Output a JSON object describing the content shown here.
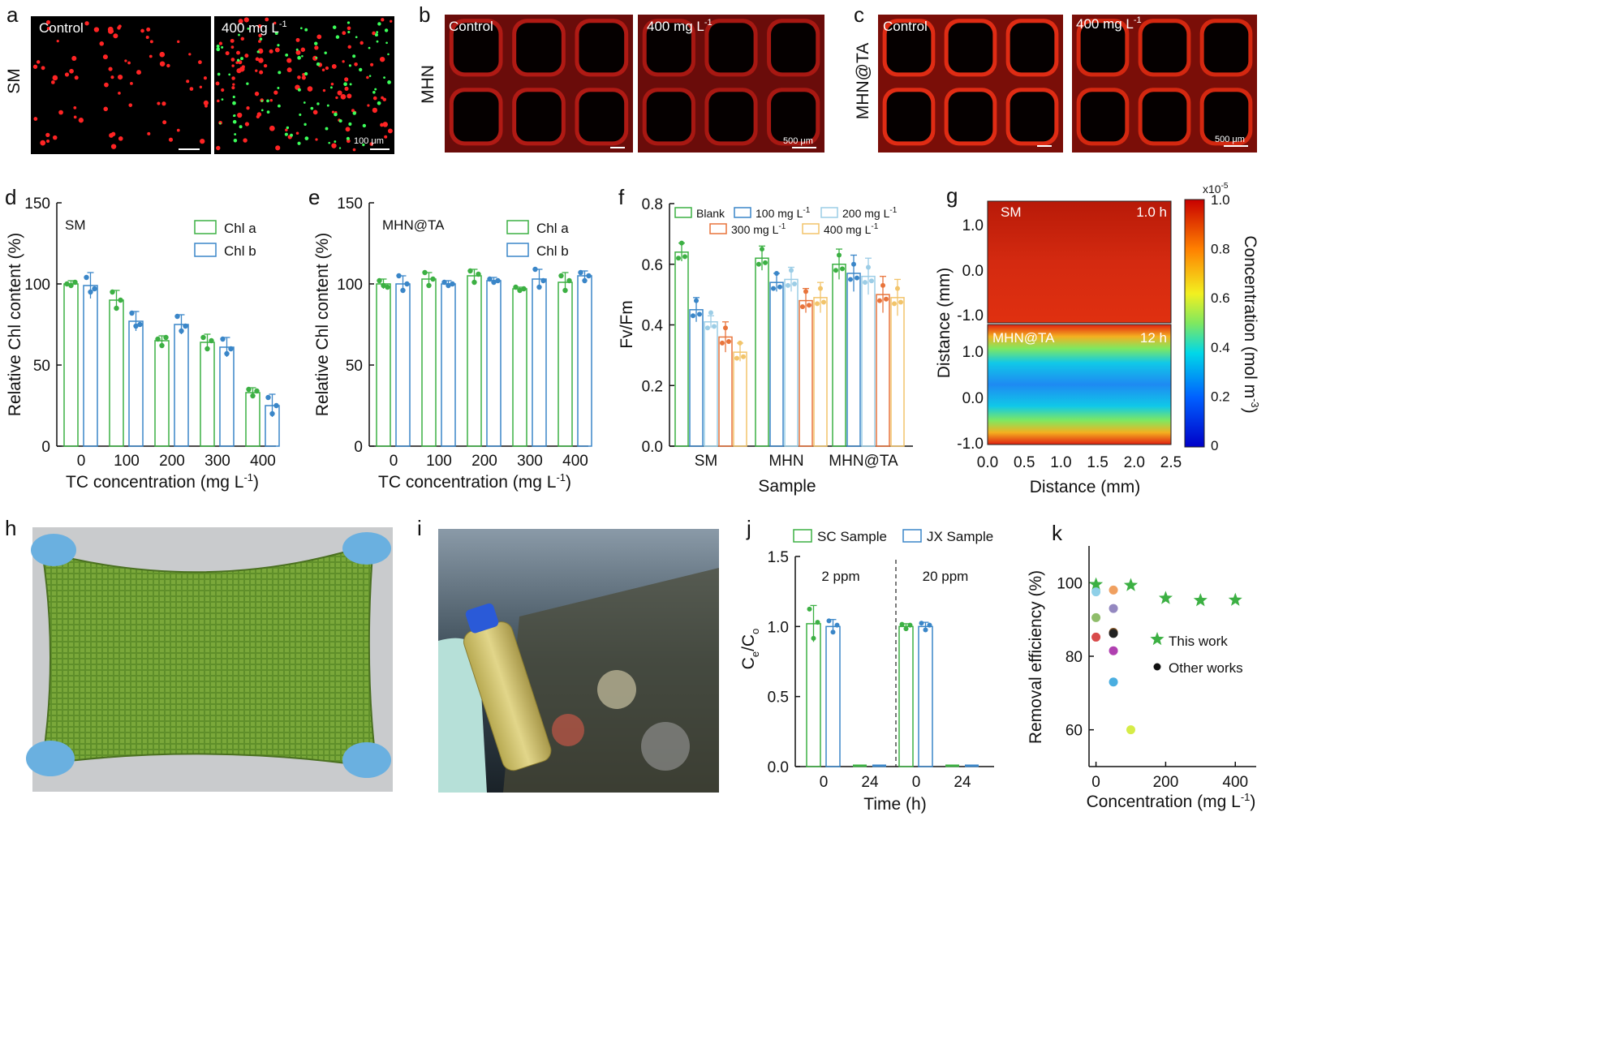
{
  "panel_letters": [
    "a",
    "b",
    "c",
    "d",
    "e",
    "f",
    "g",
    "h",
    "i",
    "j",
    "k"
  ],
  "micrographs": {
    "control": "Control",
    "treated": "400 mg L",
    "treated_sup": "-1",
    "row_labels": [
      "SM",
      "MHN",
      "MHN@TA"
    ],
    "scale_a": "100 μm",
    "scale_bc": "500 μm"
  },
  "colors": {
    "green": "#3cb043",
    "blue": "#3a86c8",
    "lightblue": "#9ccde6",
    "orange": "#e8743b",
    "yellow": "#f2c46a"
  },
  "chart_data": [
    {
      "panel": "d",
      "type": "bar",
      "label": "SM",
      "categories": [
        "0",
        "100",
        "200",
        "300",
        "400"
      ],
      "series": [
        {
          "name": "Chl a",
          "values": [
            100,
            90,
            65,
            64,
            33
          ],
          "err": [
            2,
            6,
            3,
            5,
            3
          ],
          "points": [
            [
              100,
              99,
              101
            ],
            [
              95,
              85,
              90
            ],
            [
              66,
              62,
              67
            ],
            [
              67,
              60,
              65
            ],
            [
              35,
              31,
              34
            ]
          ]
        },
        {
          "name": "Chl b",
          "values": [
            99,
            77,
            75,
            61,
            25
          ],
          "err": [
            8,
            6,
            6,
            6,
            7
          ],
          "points": [
            [
              104,
              95,
              97
            ],
            [
              82,
              74,
              75
            ],
            [
              80,
              71,
              74
            ],
            [
              66,
              57,
              60
            ],
            [
              30,
              20,
              25
            ]
          ]
        }
      ],
      "ylim": [
        0,
        150
      ],
      "yticks": [
        0,
        50,
        100,
        150
      ],
      "xlabel": "TC concentration (mg L",
      "xlabel_sup": "-1",
      "xlabel_end": ")",
      "ylabel": "Relative Chl content (%)"
    },
    {
      "panel": "e",
      "type": "bar",
      "label": "MHN@TA",
      "categories": [
        "0",
        "100",
        "200",
        "300",
        "400"
      ],
      "series": [
        {
          "name": "Chl a",
          "values": [
            100,
            103,
            105,
            97,
            101
          ],
          "err": [
            3,
            4,
            4,
            1,
            6
          ],
          "points": [
            [
              102,
              99,
              98
            ],
            [
              107,
              99,
              103
            ],
            [
              108,
              101,
              106
            ],
            [
              98,
              96,
              97
            ],
            [
              105,
              96,
              102
            ]
          ]
        },
        {
          "name": "Chl b",
          "values": [
            100,
            100,
            102,
            103,
            105
          ],
          "err": [
            5,
            2,
            2,
            6,
            3
          ],
          "points": [
            [
              105,
              96,
              100
            ],
            [
              101,
              99,
              100
            ],
            [
              103,
              101,
              102
            ],
            [
              109,
              98,
              102
            ],
            [
              107,
              102,
              105
            ]
          ]
        }
      ],
      "ylim": [
        0,
        150
      ],
      "yticks": [
        0,
        50,
        100,
        150
      ],
      "xlabel": "TC concentration (mg L",
      "xlabel_sup": "-1",
      "xlabel_end": ")",
      "ylabel": "Relative Chl content (%)"
    },
    {
      "panel": "f",
      "type": "bar",
      "categories": [
        "SM",
        "MHN",
        "MHN@TA"
      ],
      "series": [
        {
          "name": "Blank",
          "values": [
            0.64,
            0.62,
            0.6
          ],
          "err": [
            0.03,
            0.04,
            0.05
          ]
        },
        {
          "name": "100 mg L",
          "sup": "-1",
          "values": [
            0.45,
            0.54,
            0.57
          ],
          "err": [
            0.04,
            0.03,
            0.06
          ]
        },
        {
          "name": "200 mg L",
          "sup": "-1",
          "values": [
            0.41,
            0.55,
            0.56
          ],
          "err": [
            0.02,
            0.04,
            0.06
          ]
        },
        {
          "name": "300 mg L",
          "sup": "-1",
          "values": [
            0.36,
            0.48,
            0.5
          ],
          "err": [
            0.05,
            0.04,
            0.06
          ]
        },
        {
          "name": "400 mg L",
          "sup": "-1",
          "values": [
            0.31,
            0.49,
            0.49
          ],
          "err": [
            0.03,
            0.05,
            0.06
          ]
        }
      ],
      "ylim": [
        0.0,
        0.8
      ],
      "yticks": [
        0.0,
        0.2,
        0.4,
        0.6,
        0.8
      ],
      "xlabel": "Sample",
      "ylabel": "Fv/Fm"
    },
    {
      "panel": "g",
      "type": "heatmap",
      "maps": [
        {
          "label": "SM",
          "time": "1.0 h",
          "profile": "uniform",
          "value": 0.95
        },
        {
          "label": "MHN@TA",
          "time": "12 h",
          "profile": "depleted-center",
          "edge_value": 1.0,
          "center_value": 0.35
        }
      ],
      "xlim": [
        0.0,
        2.5
      ],
      "xticks": [
        "0.0",
        "0.5",
        "1.0",
        "1.5",
        "2.0",
        "2.5"
      ],
      "yticks": [
        "1.0",
        "0.0",
        "-1.0"
      ],
      "xlabel": "Distance (mm)",
      "ylabel": "Distance (mm)",
      "colorbar": {
        "ticks": [
          "0",
          "0.2",
          "0.4",
          "0.6",
          "0.8",
          "1.0"
        ],
        "multiplier": "x10",
        "multiplier_sup": "-5",
        "label": "Concentration (mol m",
        "label_sup": "-3",
        "label_end": ")"
      }
    },
    {
      "panel": "j",
      "type": "bar",
      "groups": [
        "2 ppm",
        "20 ppm"
      ],
      "categories": [
        "0",
        "24",
        "0",
        "24"
      ],
      "series": [
        {
          "name": "SC Sample",
          "values": [
            1.02,
            0.0,
            1.0,
            0.0
          ],
          "err": [
            0.13,
            0.0,
            0.02,
            0.0
          ]
        },
        {
          "name": "JX Sample",
          "values": [
            1.0,
            0.0,
            1.0,
            0.0
          ],
          "err": [
            0.05,
            0.0,
            0.03,
            0.0
          ]
        }
      ],
      "ylim": [
        0.0,
        1.5
      ],
      "yticks": [
        0.0,
        0.5,
        1.0,
        1.5
      ],
      "xlabel": "Time (h)",
      "ylabel": "C",
      "ylabel_sub1": "e",
      "ylabel_mid": "/C",
      "ylabel_sub2": "o"
    },
    {
      "panel": "k",
      "type": "scatter",
      "series": [
        {
          "name": "This work",
          "marker": "star",
          "x": [
            0,
            100,
            200,
            300,
            400
          ],
          "y": [
            99.5,
            99.3,
            95.8,
            95.2,
            95.3
          ]
        },
        {
          "name": "Other works",
          "marker": "circle",
          "x": [
            0,
            0,
            0,
            50,
            50,
            50,
            50,
            50,
            50,
            100
          ],
          "y": [
            97.5,
            90.5,
            85.2,
            98.0,
            93.0,
            86.5,
            86.2,
            81.5,
            73.0,
            60.0
          ],
          "colors": [
            "#8fd0e8",
            "#8fbd6a",
            "#d84a4a",
            "#f0a060",
            "#9488c0",
            "#8a5a2a",
            "#222222",
            "#b040b0",
            "#4aaee0",
            "#d6ec48"
          ]
        }
      ],
      "xlim": [
        -20,
        460
      ],
      "ylim": [
        50,
        110
      ],
      "xticks": [
        0,
        200,
        400
      ],
      "yticks": [
        60,
        80,
        100
      ],
      "xlabel": "Concentration (mg L",
      "xlabel_sup": "-1",
      "xlabel_end": ")",
      "ylabel": "Removal efficiency (%)"
    }
  ]
}
